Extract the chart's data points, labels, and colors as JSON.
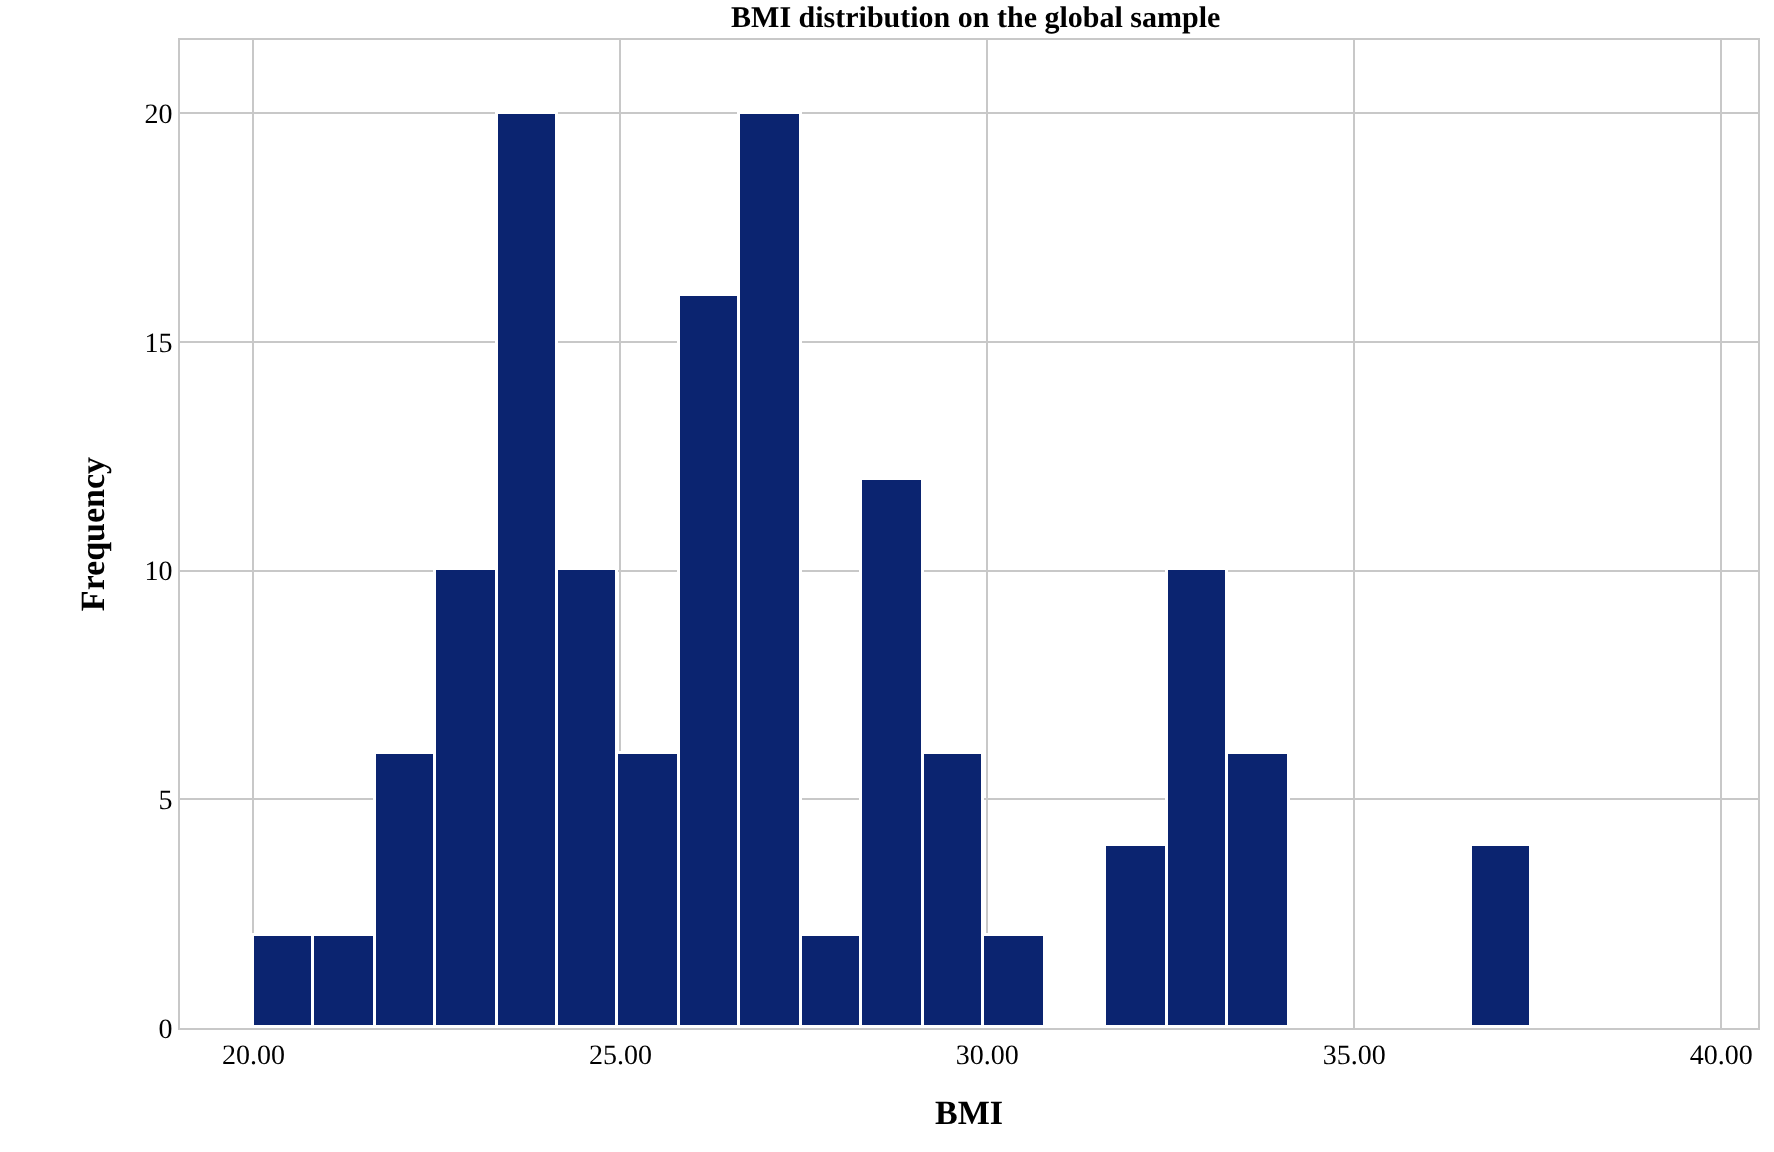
{
  "chart_data": {
    "type": "histogram",
    "title": "BMI distribution on the global sample",
    "xlabel": "BMI",
    "ylabel": "Frequency",
    "bins": [
      20.0,
      20.83,
      21.66,
      22.49,
      23.32,
      24.15,
      24.98,
      25.81,
      26.64,
      27.47,
      28.3,
      29.13,
      29.96,
      30.79,
      31.62,
      32.45,
      33.28,
      34.11,
      34.94,
      35.77,
      36.6,
      37.43
    ],
    "values": [
      2,
      2,
      6,
      10,
      20,
      10,
      6,
      16,
      20,
      2,
      12,
      6,
      2,
      0,
      4,
      10,
      6,
      0,
      0,
      0,
      4
    ],
    "color": "#0b2470",
    "xlim": [
      19.0,
      40.5
    ],
    "xticks": [
      {
        "value": 20,
        "label": "20.00"
      },
      {
        "value": 25,
        "label": "25.00"
      },
      {
        "value": 30,
        "label": "30.00"
      },
      {
        "value": 35,
        "label": "35.00"
      },
      {
        "value": 40,
        "label": "40.00"
      }
    ],
    "ylim": [
      0,
      21.6
    ],
    "yticks": [
      0,
      5,
      10,
      15,
      20
    ],
    "grid": true
  }
}
